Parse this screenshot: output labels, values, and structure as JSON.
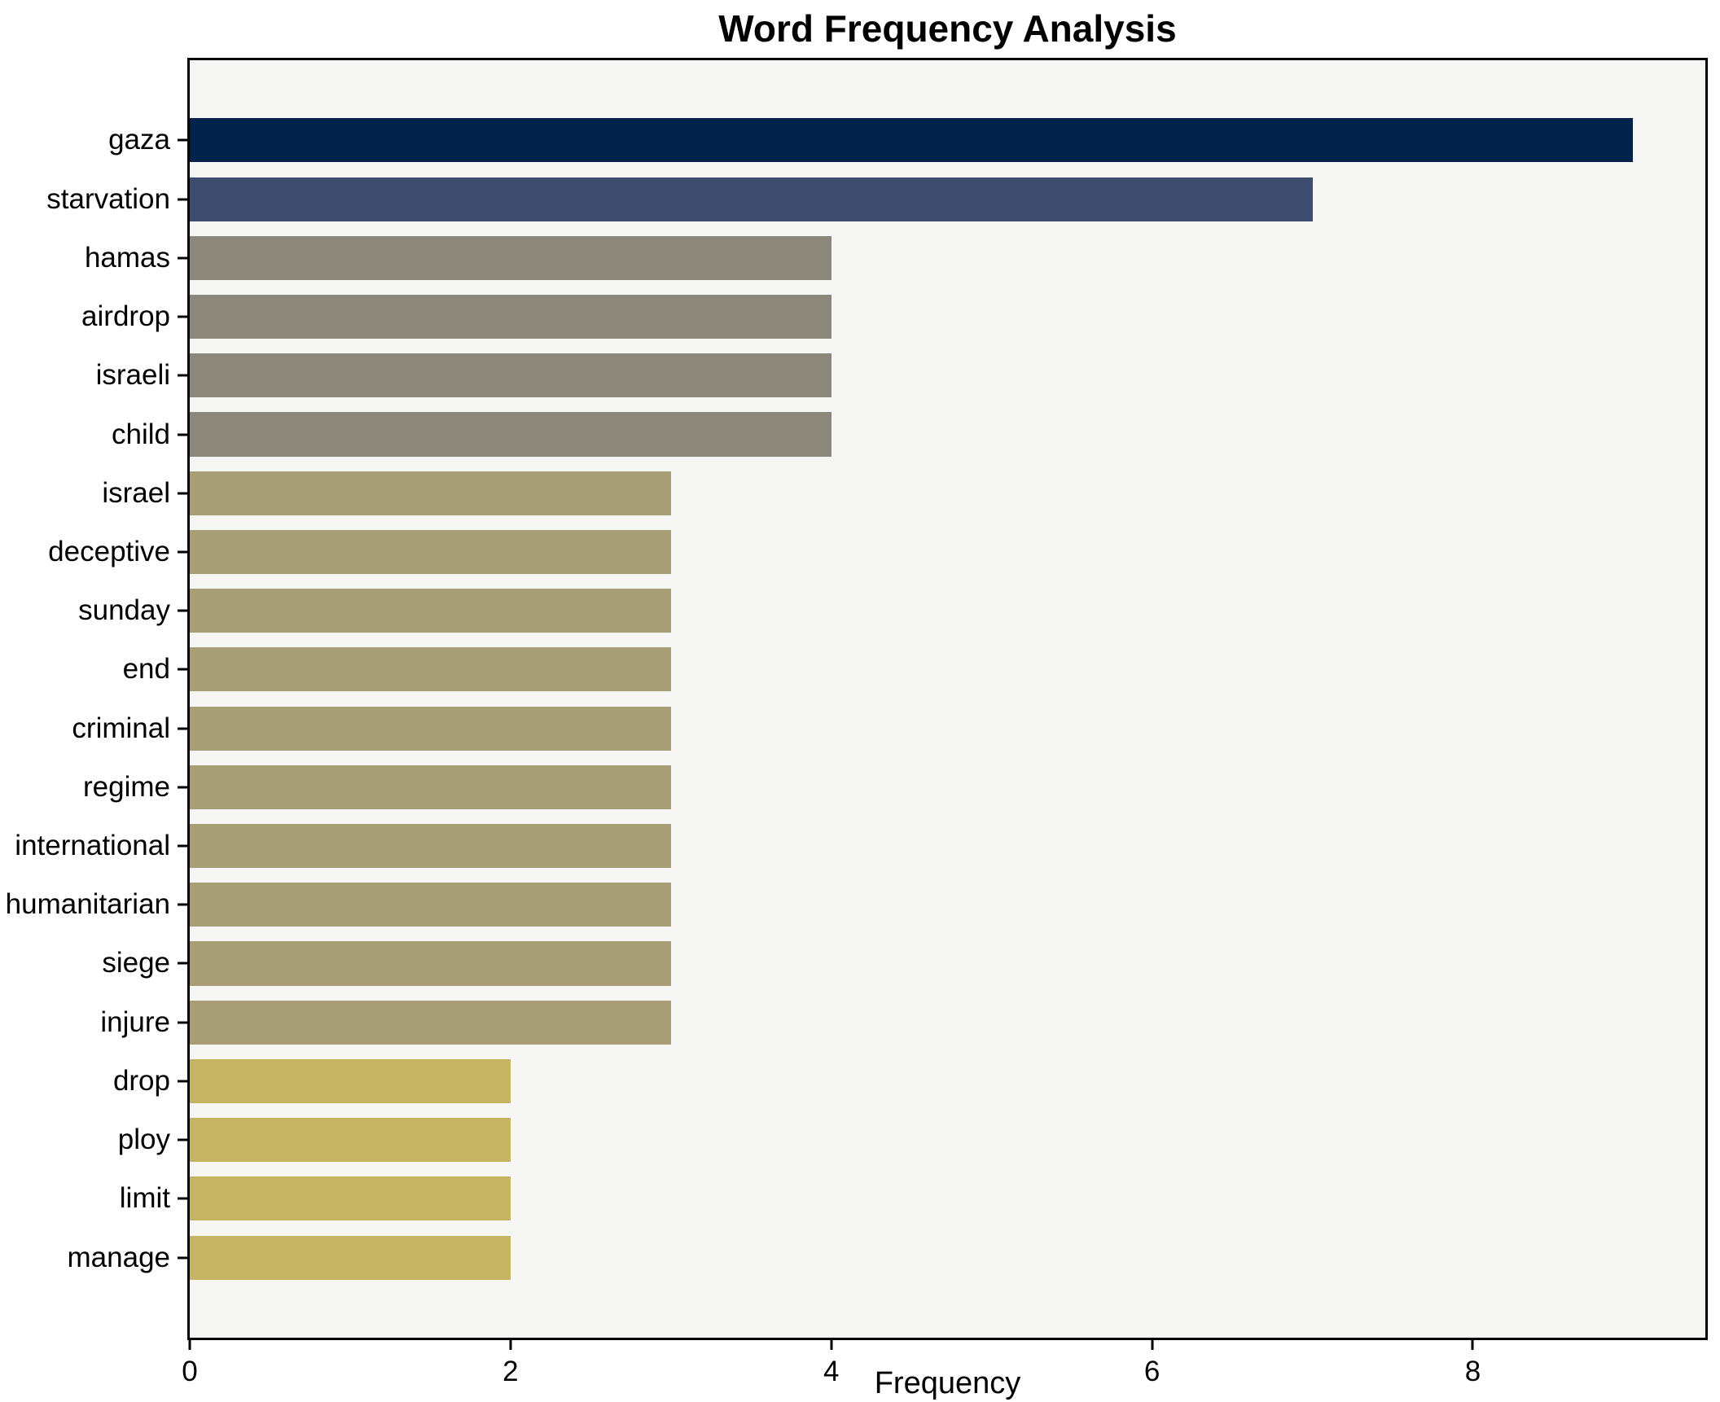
{
  "chart_data": {
    "type": "bar",
    "orientation": "horizontal",
    "title": "Word Frequency Analysis",
    "xlabel": "Frequency",
    "ylabel": "",
    "categories": [
      "gaza",
      "starvation",
      "hamas",
      "airdrop",
      "israeli",
      "child",
      "israel",
      "deceptive",
      "sunday",
      "end",
      "criminal",
      "regime",
      "international",
      "humanitarian",
      "siege",
      "injure",
      "drop",
      "ploy",
      "limit",
      "manage"
    ],
    "values": [
      9,
      7,
      4,
      4,
      4,
      4,
      3,
      3,
      3,
      3,
      3,
      3,
      3,
      3,
      3,
      3,
      2,
      2,
      2,
      2
    ],
    "bar_colors": [
      "#02224c",
      "#3d4b6e",
      "#8b887b",
      "#8b887b",
      "#8b887b",
      "#8b887b",
      "#a79e73",
      "#a79e73",
      "#a79e73",
      "#a79e73",
      "#a79e73",
      "#a79e73",
      "#a79e73",
      "#a79e73",
      "#a79e73",
      "#a79e73",
      "#c5b464",
      "#c5b464",
      "#c5b464",
      "#c5b464"
    ],
    "xlim": [
      0,
      9.45
    ],
    "xticks": [
      "0",
      "2",
      "4",
      "6",
      "8"
    ],
    "xtick_values": [
      0,
      2,
      4,
      6,
      8
    ],
    "grid": false,
    "legend": "none",
    "plot_background": "#f6f6f5",
    "frame_color": "#000000"
  }
}
